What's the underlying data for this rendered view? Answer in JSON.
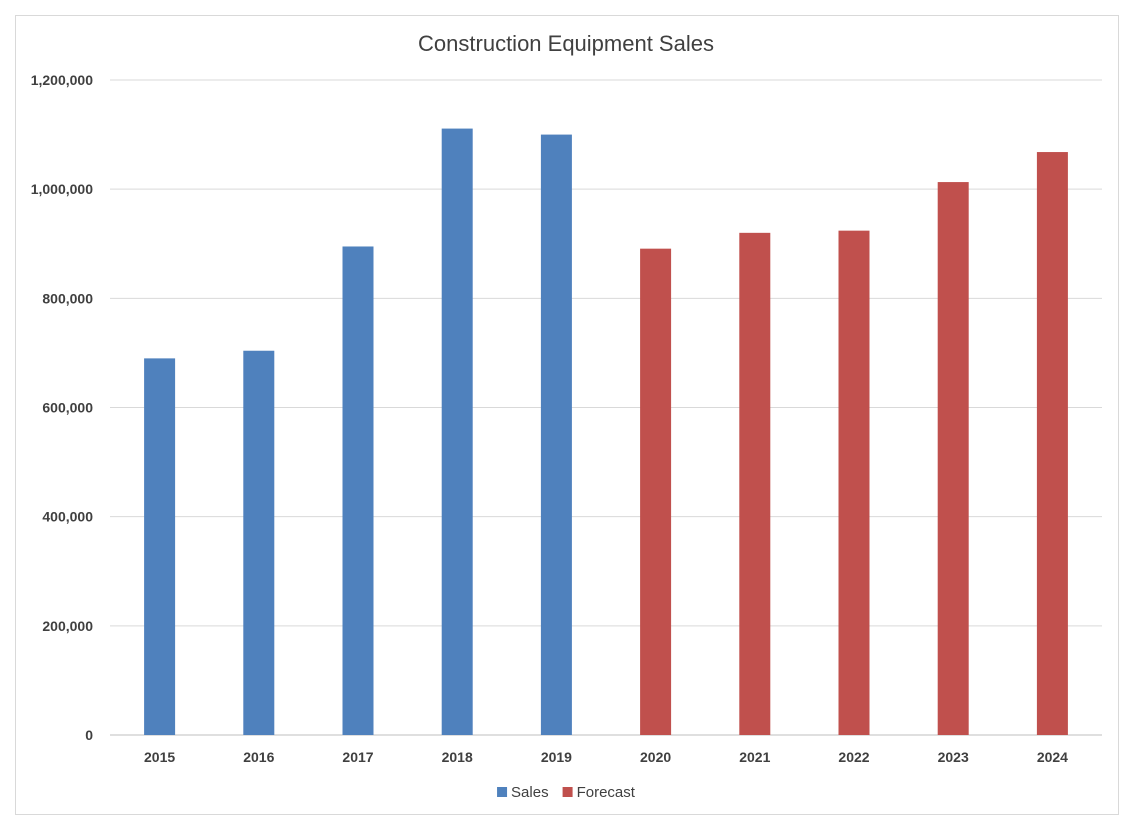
{
  "chart_data": {
    "type": "bar",
    "title": "Construction Equipment Sales",
    "xlabel": "",
    "ylabel": "",
    "categories": [
      "2015",
      "2016",
      "2017",
      "2018",
      "2019",
      "2020",
      "2021",
      "2022",
      "2023",
      "2024"
    ],
    "series": [
      {
        "name": "Sales",
        "color": "#4f81bd",
        "values": [
          690000,
          704000,
          895000,
          1111000,
          1100000,
          null,
          null,
          null,
          null,
          null
        ]
      },
      {
        "name": "Forecast",
        "color": "#c0504d",
        "values": [
          null,
          null,
          null,
          null,
          null,
          891000,
          920000,
          924000,
          1013000,
          1068000
        ]
      }
    ],
    "ylim": [
      0,
      1200000
    ],
    "yticks": [
      0,
      200000,
      400000,
      600000,
      800000,
      1000000,
      1200000
    ],
    "ytick_labels": [
      "0",
      "200,000",
      "400,000",
      "600,000",
      "800,000",
      "1,000,000",
      "1,200,000"
    ],
    "grid": true,
    "legend_position": "bottom"
  }
}
